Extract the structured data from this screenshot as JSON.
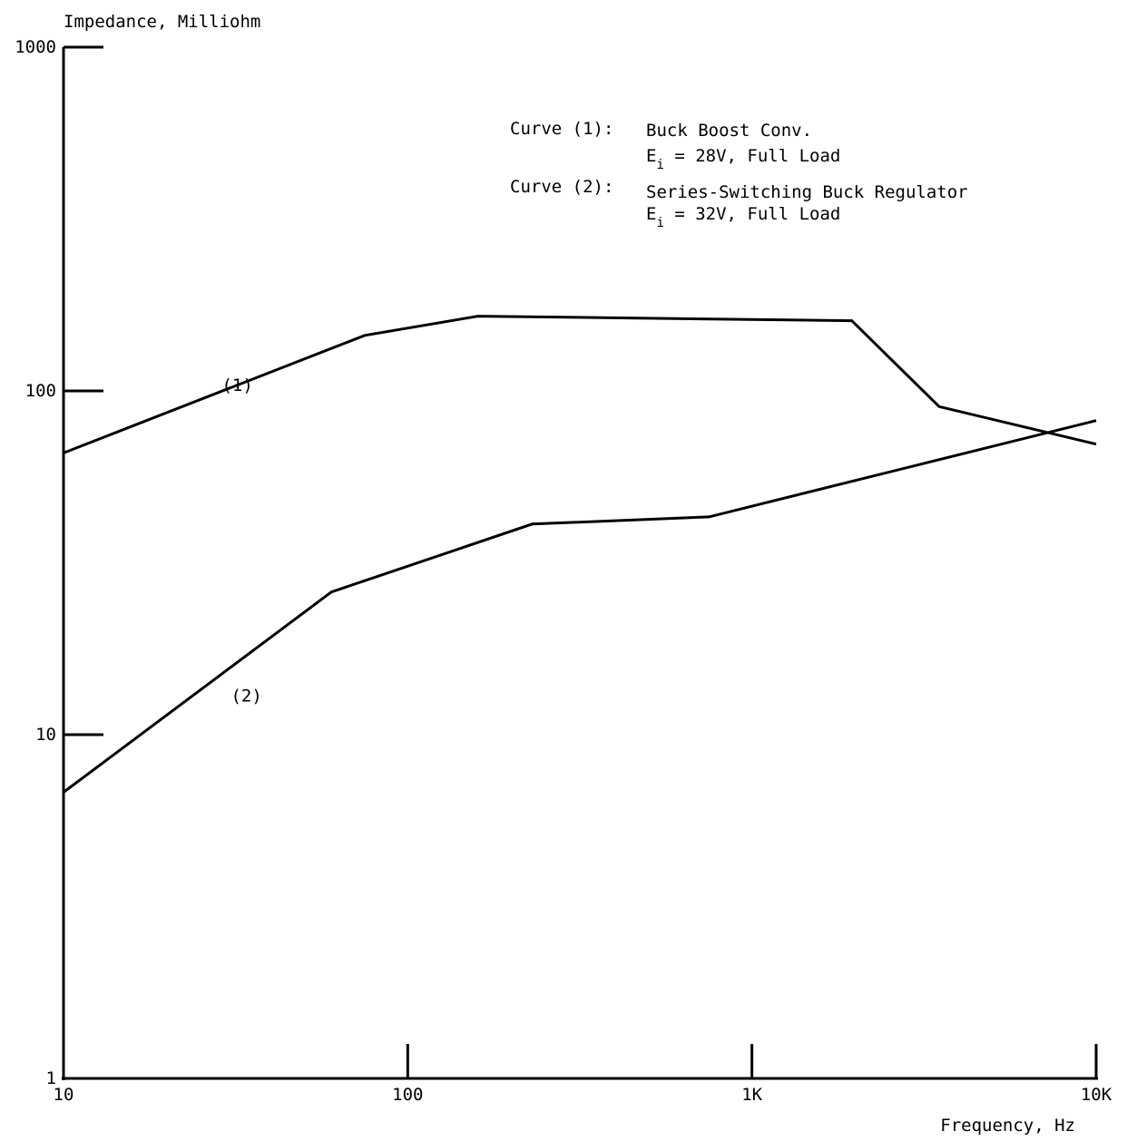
{
  "chart_data": {
    "type": "line",
    "ylabel": "Impedance, Milliohm",
    "xlabel": "Frequency, Hz",
    "x_scale": "log",
    "y_scale": "log",
    "xlim": [
      10,
      10000
    ],
    "ylim": [
      1,
      1000
    ],
    "x_ticks": [
      10,
      100,
      1000,
      10000
    ],
    "x_tick_labels": [
      "10",
      "100",
      "1K",
      "10K"
    ],
    "y_ticks": [
      1,
      10,
      100,
      1000
    ],
    "y_tick_labels": [
      "1",
      "10",
      "100",
      "1000"
    ],
    "grid": false,
    "legend_position": "top-right",
    "legend": [
      {
        "label": "Curve (1):",
        "line1": "Buck Boost Conv.",
        "line2_main": "E",
        "line2_sub": "i",
        "line2_rest": " = 28V, Full Load"
      },
      {
        "label": "Curve (2):",
        "line1": "Series-Switching Buck Regulator",
        "line2_main": "E",
        "line2_sub": "i",
        "line2_rest": " = 32V, Full Load"
      }
    ],
    "series": [
      {
        "name": "(1)",
        "points": [
          [
            10,
            66
          ],
          [
            75,
            145
          ],
          [
            160,
            165
          ],
          [
            1950,
            160
          ],
          [
            3500,
            90
          ],
          [
            10000,
            70
          ]
        ]
      },
      {
        "name": "(2)",
        "points": [
          [
            10,
            6.8
          ],
          [
            60,
            26
          ],
          [
            230,
            41
          ],
          [
            750,
            43
          ],
          [
            10000,
            82
          ]
        ]
      }
    ],
    "series_labels": [
      {
        "text": "(1)",
        "x": 32,
        "y": 100
      },
      {
        "text": "(2)",
        "x": 34,
        "y": 12.5
      }
    ]
  }
}
